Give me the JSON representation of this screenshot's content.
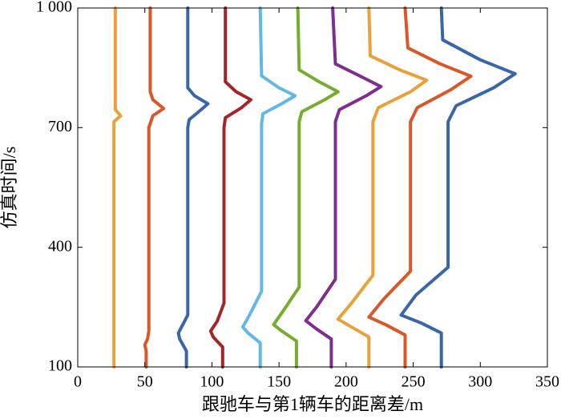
{
  "chart_data": {
    "type": "line",
    "xlabel": "跟驰车与第1辆车的距离差/m",
    "ylabel": "仿真时间/s",
    "xlim": [
      0,
      350
    ],
    "xticks": [
      0,
      50,
      100,
      150,
      200,
      250,
      300,
      350
    ],
    "ylim": [
      100,
      1000
    ],
    "yticks": [
      100,
      400,
      700,
      {
        "value": 1000,
        "label": "1 000"
      }
    ],
    "series": [
      {
        "color": "#e9a13b",
        "y": [
          100,
          700,
          715,
          730,
          745,
          760,
          1000
        ],
        "values": [
          27,
          27,
          27,
          32,
          28,
          28,
          28
        ]
      },
      {
        "color": "#d9582a",
        "y": [
          100,
          140,
          155,
          170,
          190,
          700,
          730,
          748,
          770,
          790,
          1000
        ],
        "values": [
          51,
          51,
          50,
          52,
          53,
          53,
          56,
          64,
          56,
          54,
          54
        ]
      },
      {
        "color": "#3a66a7",
        "y": [
          100,
          140,
          170,
          185,
          230,
          700,
          720,
          745,
          760,
          780,
          800,
          1000
        ],
        "values": [
          81,
          81,
          76,
          75,
          82,
          82,
          83,
          92,
          97,
          87,
          82,
          82
        ]
      },
      {
        "color": "#a2252a",
        "y": [
          100,
          150,
          175,
          190,
          215,
          260,
          700,
          725,
          750,
          770,
          790,
          815,
          1000
        ],
        "values": [
          108,
          108,
          101,
          99,
          104,
          109,
          109,
          110,
          122,
          129,
          118,
          110,
          110
        ]
      },
      {
        "color": "#62b8e2",
        "y": [
          100,
          160,
          185,
          200,
          230,
          290,
          710,
          735,
          760,
          780,
          800,
          830,
          1000
        ],
        "values": [
          136,
          136,
          127,
          123,
          128,
          137,
          137,
          138,
          152,
          162,
          150,
          137,
          136
        ]
      },
      {
        "color": "#77ac30",
        "y": [
          100,
          165,
          190,
          206,
          240,
          300,
          715,
          740,
          770,
          790,
          815,
          845,
          1000
        ],
        "values": [
          163,
          163,
          152,
          146,
          153,
          165,
          165,
          167,
          184,
          194,
          180,
          165,
          164
        ]
      },
      {
        "color": "#7e2f8e",
        "y": [
          100,
          170,
          195,
          216,
          250,
          320,
          715,
          745,
          780,
          803,
          830,
          860,
          1000
        ],
        "values": [
          189,
          189,
          178,
          170,
          178,
          192,
          192,
          195,
          215,
          226,
          210,
          192,
          190
        ]
      },
      {
        "color": "#e9a13b",
        "y": [
          100,
          175,
          200,
          220,
          260,
          330,
          715,
          750,
          790,
          819,
          845,
          880,
          1000
        ],
        "values": [
          217,
          217,
          204,
          194,
          204,
          220,
          220,
          224,
          248,
          260,
          240,
          218,
          217
        ]
      },
      {
        "color": "#d9582a",
        "y": [
          100,
          180,
          205,
          225,
          270,
          340,
          715,
          750,
          795,
          829,
          860,
          900,
          1000
        ],
        "values": [
          244,
          244,
          230,
          217,
          228,
          248,
          248,
          253,
          278,
          293,
          270,
          246,
          244
        ]
      },
      {
        "color": "#3a66a7",
        "y": [
          100,
          185,
          210,
          230,
          280,
          350,
          715,
          755,
          800,
          835,
          870,
          920,
          1000
        ],
        "values": [
          271,
          271,
          256,
          241,
          252,
          276,
          276,
          282,
          310,
          326,
          300,
          272,
          271
        ]
      }
    ]
  }
}
